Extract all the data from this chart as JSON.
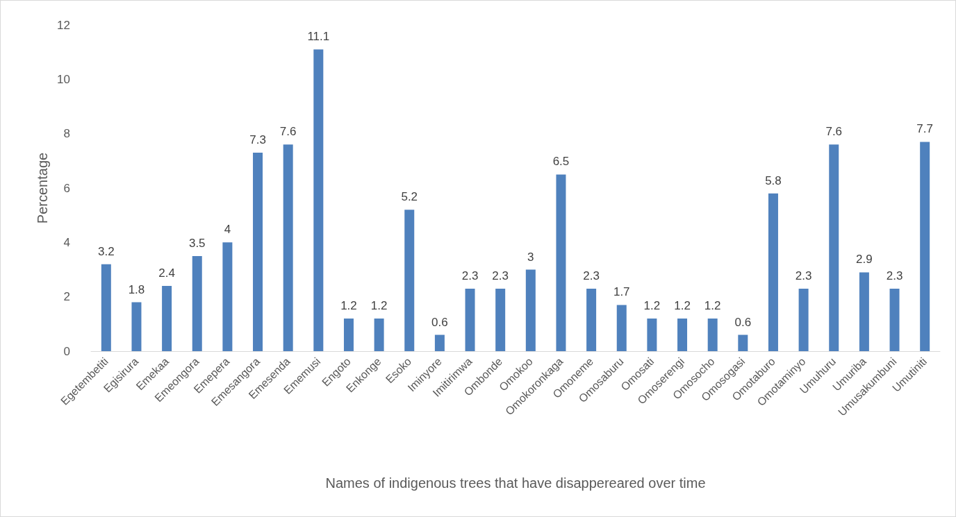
{
  "chart_data": {
    "type": "bar",
    "xlabel": "Names of indigenous trees that have disappereared over time",
    "ylabel": "Percentage",
    "categories": [
      "Egetembetiti",
      "Egisirura",
      "Emekaa",
      "Emeongora",
      "Emepera",
      "Emesangora",
      "Emesenda",
      "Ememusi",
      "Engoto",
      "Enkonge",
      "Esoko",
      "Iminyore",
      "Imitirimwa",
      "Ombonde",
      "Omokoo",
      "Omokoronkaga",
      "Omoneme",
      "Omosaburu",
      "Omosati",
      "Omoserengi",
      "Omosocho",
      "Omosogasi",
      "Omotaburo",
      "Omotaminyo",
      "Umuhuru",
      "Umuriba",
      "Umusakumbuni",
      "Umutiniti"
    ],
    "values": [
      3.2,
      1.8,
      2.4,
      3.5,
      4,
      7.3,
      7.6,
      11.1,
      1.2,
      1.2,
      5.2,
      0.6,
      2.3,
      2.3,
      3,
      6.5,
      2.3,
      1.7,
      1.2,
      1.2,
      1.2,
      0.6,
      5.8,
      2.3,
      7.6,
      2.9,
      2.3,
      7.7
    ],
    "color": "#4f81bd",
    "ylim": [
      0,
      12
    ],
    "yticks": [
      0,
      2,
      4,
      6,
      8,
      10,
      12
    ],
    "data_labels": true,
    "grid": false
  }
}
